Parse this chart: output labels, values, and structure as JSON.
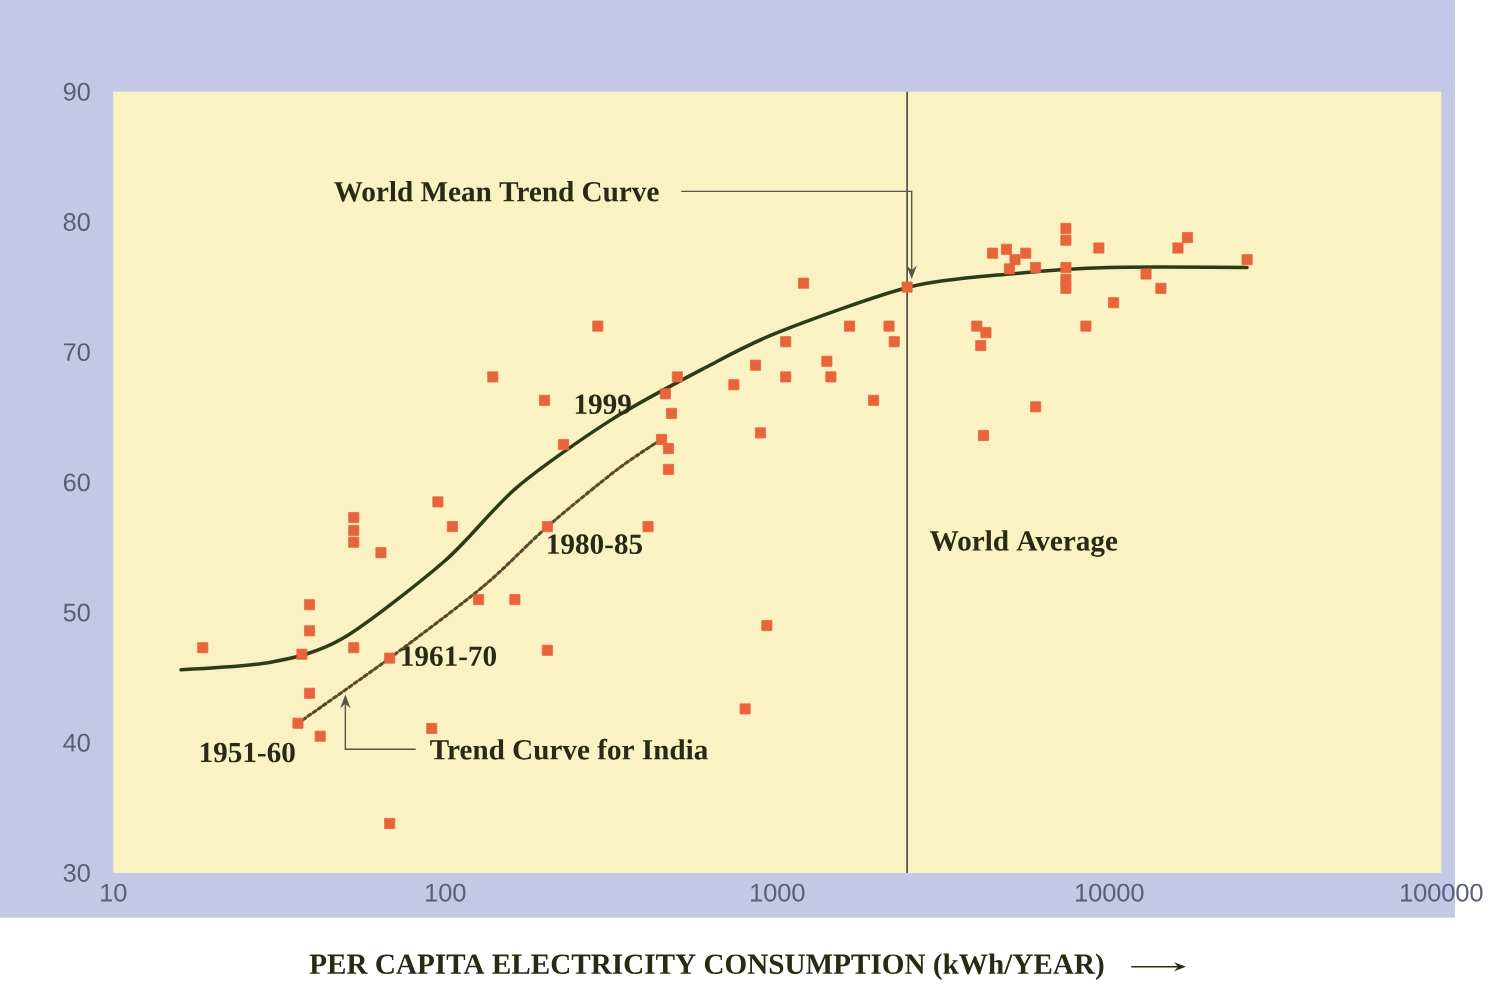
{
  "chart_data": {
    "type": "scatter",
    "xlabel": "PER CAPITA ELECTRICITY CONSUMPTION (kWh/YEAR)",
    "log": "x",
    "xlim": [
      10,
      100000
    ],
    "xticks": [
      10,
      100,
      1000,
      10000,
      100000
    ],
    "ylim": [
      30,
      90
    ],
    "yticks": [
      30,
      40,
      50,
      60,
      70,
      80,
      90
    ],
    "series": [
      {
        "marker": "square",
        "color": "#e8643c",
        "x": [
          18.6,
          37,
          39,
          39,
          39,
          36,
          42,
          53,
          53,
          53,
          53,
          64,
          68,
          68,
          91,
          95,
          105,
          126,
          139,
          162,
          199,
          203,
          203,
          227,
          288,
          408,
          448,
          470,
          470,
          460,
          480,
          500,
          740,
          800,
          860,
          890,
          930,
          1060,
          1060,
          1200,
          1410,
          1450,
          1650,
          1950,
          2170,
          2250,
          2460,
          3990,
          4100,
          4250,
          4180,
          6000,
          4450,
          4900,
          5200,
          5600,
          5000,
          6000,
          7400,
          7400,
          7400,
          7400,
          7400,
          8500,
          9300,
          10300,
          12900,
          14300,
          16100,
          17200,
          26000
        ],
        "values": [
          47.3,
          46.8,
          48.6,
          50.6,
          43.8,
          41.5,
          40.5,
          57.3,
          56.3,
          55.4,
          47.3,
          54.6,
          46.5,
          33.8,
          41.1,
          58.5,
          56.6,
          51,
          68.1,
          51,
          66.3,
          56.6,
          47.1,
          62.9,
          72,
          56.6,
          63.3,
          62.6,
          61,
          66.8,
          65.3,
          68.1,
          67.5,
          42.6,
          69,
          63.8,
          49,
          68.1,
          70.8,
          75.3,
          69.3,
          68.1,
          72,
          66.3,
          72,
          70.8,
          75,
          72,
          70.5,
          71.5,
          63.6,
          65.8,
          77.6,
          77.9,
          77.1,
          77.6,
          76.4,
          76.5,
          79.5,
          78.6,
          76.5,
          75.6,
          74.9,
          72,
          78,
          73.8,
          76,
          74.9,
          78,
          78.8,
          77.1
        ]
      },
      {
        "type": "line",
        "marker": "none",
        "line_style": "solid",
        "color": "#2e3b14",
        "x": [
          16,
          30,
          49,
          100,
          164,
          316,
          606,
          1000,
          2500,
          5000,
          10000,
          26000
        ],
        "values": [
          45.6,
          46.2,
          48,
          54,
          59.6,
          64.8,
          68.8,
          71.5,
          75,
          76,
          76.5,
          76.5
        ]
      },
      {
        "type": "line",
        "marker": "none",
        "line_style": "dotted",
        "color": "#5a4a2a",
        "x": [
          36,
          68,
          130,
          203,
          330,
          448
        ],
        "values": [
          41.5,
          46.5,
          52,
          56.6,
          61,
          63.3
        ]
      }
    ],
    "ref_lines": [
      {
        "axis": "x",
        "value": 2460,
        "label": "World Average",
        "color": "#444444",
        "line_style": "solid"
      }
    ],
    "annotations": [
      {
        "text": "World Mean Trend Curve",
        "x": 2540,
        "y": 75.3
      },
      {
        "text": "Trend Curve for India",
        "x": 50,
        "y": 44
      },
      {
        "text": "1951-60",
        "x": 36,
        "y": 41.5
      },
      {
        "text": "1961-70",
        "x": 68,
        "y": 46.5
      },
      {
        "text": "1980-85",
        "x": 203,
        "y": 56.6
      },
      {
        "text": "1999",
        "x": 448,
        "y": 63.3
      }
    ],
    "grid": false
  }
}
